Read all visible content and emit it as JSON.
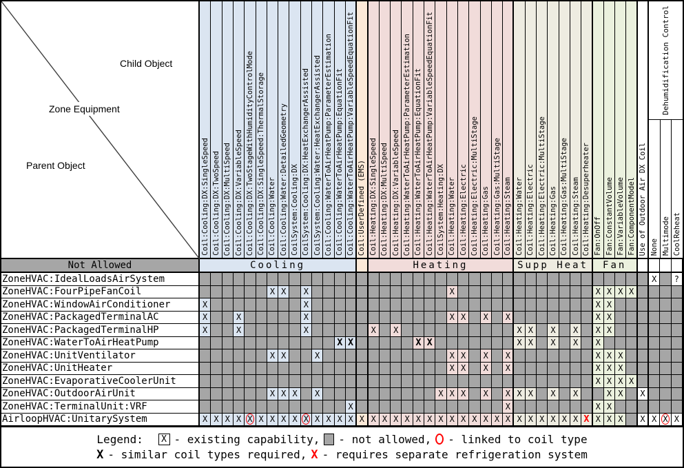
{
  "corner": {
    "child_label": "Child Object",
    "middle_label": "Zone Equipment",
    "parent_label": "Parent Object"
  },
  "not_allowed_label": "Not Allowed",
  "dehumid_label": "Dehumidification Control",
  "colors": {
    "cooling": "#dbe5f1",
    "user_defined": "#fce9d8",
    "heating": "#f1dcda",
    "supp_heat": "#eeece1",
    "fan": "#ebf1de",
    "white": "#ffffff",
    "not_allowed_gray": "#a6a6a6",
    "mark_red": "#ff0000"
  },
  "groups": [
    {
      "label": "Cooling",
      "span": 14,
      "color_key": "cooling"
    },
    {
      "label": "",
      "span": 1,
      "color_key": "user_defined"
    },
    {
      "label": "Heating",
      "span": 13,
      "color_key": "heating"
    },
    {
      "label": "Supp Heat",
      "span": 7,
      "color_key": "supp_heat"
    },
    {
      "label": "Fan",
      "span": 4,
      "color_key": "fan"
    },
    {
      "label": "",
      "span": 1,
      "color_key": "white"
    },
    {
      "label": "",
      "span": 1,
      "color_key": "white"
    },
    {
      "label": "",
      "span": 1,
      "color_key": "white"
    },
    {
      "label": "",
      "span": 1,
      "color_key": "white"
    }
  ],
  "columns": [
    "Coil:Cooling:DX:SingleSpeed",
    "Coil:Cooling:DX:TwoSpeed",
    "Coil:Cooling:DX:MultiSpeed",
    "Coil:Cooling:DX:VariableSpeed",
    "Coil:Cooling:DX:TwoStageWithHumidityControlMode",
    "Coil:Cooling:DX:SingleSpeed:ThermalStorage",
    "Coil:Cooling:Water",
    "Coil:Cooling:Water:DetailedGeometry",
    "CoilSystem:Cooling:DX",
    "CoilSystem:Cooling:DX:HeatExchangerAssisted",
    "CoilSystem:Cooling:Water:HeatExchangerAssisted",
    "Coil:Cooling:WaterToAirHeatPump:ParameterEstimation",
    "Coil:Cooling:WaterToAirHeatPump:EquationFit",
    "Coil:Cooling:WaterToAirHeatPump:VariableSpeedEquationFit",
    "Coil:UserDefined (EMS)",
    "Coil:Heating:DX:SingleSpeed",
    "Coil:Heating:DX:MultiSpeed",
    "Coil:Heating:DX:VariableSpeed",
    "Coil:Heating:WaterToAirHeatPump:ParameterEstimation",
    "Coil:Heating:WaterToAirHeatPump:EquationFit",
    "Coil:Heating:WaterToAirHeatPump:VariableSpeedEquationFit",
    "CoilSystem:Heating:DX",
    "Coil:Heating:Water",
    "Coil:Heating:Electric",
    "Coil:Heating:Electric:MultiStage",
    "Coil:Heating:Gas",
    "Coil:Heating:Gas:MultiStage",
    "Coil:Heating:Steam",
    "Coil:Heating:Water",
    "Coil:Heating:Electric",
    "Coil:Heating:Electric:MultiStage",
    "Coil:Heating:Gas",
    "Coil:Heating:Gas:MultiStage",
    "Coil:Heating:Steam",
    "Coil:Heating:Desuperheater",
    "Fan:OnOff",
    "Fan:ConstantVolume",
    "Fan:VariableVolume",
    "Fan:ComponentModel",
    "Use of Outdoor Air DX Coil",
    "None",
    "Multimode",
    "CoolReheat"
  ],
  "rows": [
    {
      "label": "ZoneHVAC:IdealLoadsAirSystem",
      "marks": {
        "41": "X",
        "43": "?"
      }
    },
    {
      "label": "ZoneHVAC:FourPipeFanCoil",
      "marks": {
        "7": "X",
        "8": "X",
        "10": "X",
        "23": "X",
        "36": "X",
        "37": "X",
        "38": "X",
        "39": "X"
      }
    },
    {
      "label": "ZoneHVAC:WindowAirConditioner",
      "marks": {
        "1": "X",
        "10": "X",
        "36": "X",
        "37": "X"
      }
    },
    {
      "label": "ZoneHVAC:PackagedTerminalAC",
      "marks": {
        "1": "X",
        "4": "X",
        "10": "X",
        "23": "X",
        "24": "X",
        "26": "X",
        "28": "X",
        "36": "X",
        "37": "X"
      }
    },
    {
      "label": "ZoneHVAC:PackagedTerminalHP",
      "marks": {
        "1": "X",
        "4": "X",
        "10": "X",
        "16": "X",
        "18": "X",
        "29": "X",
        "30": "X",
        "32": "X",
        "34": "X",
        "36": "X",
        "37": "X"
      }
    },
    {
      "label": "ZoneHVAC:WaterToAirHeatPump",
      "marks": {
        "13": "XB",
        "14": "XB",
        "20": "XB",
        "21": "XB",
        "29": "X",
        "30": "X",
        "32": "X",
        "34": "X",
        "36": "X"
      }
    },
    {
      "label": "ZoneHVAC:UnitVentilator",
      "marks": {
        "7": "X",
        "8": "X",
        "11": "X",
        "23": "X",
        "24": "X",
        "26": "X",
        "28": "X",
        "36": "X",
        "37": "X",
        "38": "X"
      }
    },
    {
      "label": "ZoneHVAC:UnitHeater",
      "marks": {
        "23": "X",
        "24": "X",
        "26": "X",
        "28": "X",
        "36": "X",
        "37": "X",
        "38": "X"
      }
    },
    {
      "label": "ZoneHVAC:EvaporativeCoolerUnit",
      "marks": {
        "36": "X",
        "37": "X",
        "38": "X",
        "39": "X"
      }
    },
    {
      "label": "ZoneHVAC:OutdoorAirUnit",
      "marks": {
        "7": "X",
        "8": "X",
        "9": "X",
        "11": "X",
        "22": "X",
        "23": "X",
        "24": "X",
        "26": "X",
        "28": "X",
        "29": "X",
        "30": "X",
        "32": "X",
        "34": "X",
        "37": "X",
        "38": "X",
        "40": "X"
      }
    },
    {
      "label": "ZoneHVAC:TerminalUnit:VRF",
      "marks": {
        "14": "X",
        "28": "X",
        "36": "X",
        "37": "X"
      }
    },
    {
      "label": "AirloopHVAC:UnitarySystem",
      "marks": {
        "1": "X",
        "2": "X",
        "3": "X",
        "4": "X",
        "5": "XO",
        "6": "X",
        "7": "X",
        "8": "X",
        "9": "X",
        "10": "XO",
        "11": "X",
        "12": "X",
        "13": "X",
        "14": "X",
        "15": "X",
        "16": "X",
        "17": "X",
        "18": "X",
        "19": "X",
        "20": "X",
        "21": "X",
        "22": "X",
        "23": "X",
        "24": "X",
        "25": "X",
        "26": "X",
        "27": "X",
        "28": "X",
        "29": "X",
        "30": "X",
        "31": "X",
        "32": "X",
        "33": "X",
        "34": "X",
        "35": "XR",
        "36": "X",
        "37": "X",
        "38": "X",
        "40": "X",
        "41": "X",
        "42": "XO",
        "43": "X"
      }
    }
  ],
  "legend": {
    "prefix": "Legend:",
    "x_glyph": "X",
    "existing": "- existing capability,",
    "not_allowed": "- not allowed,",
    "linked": "- linked to coil type",
    "similar": "- similar coil types required,",
    "separate": "- requires separate refrigeration system"
  }
}
